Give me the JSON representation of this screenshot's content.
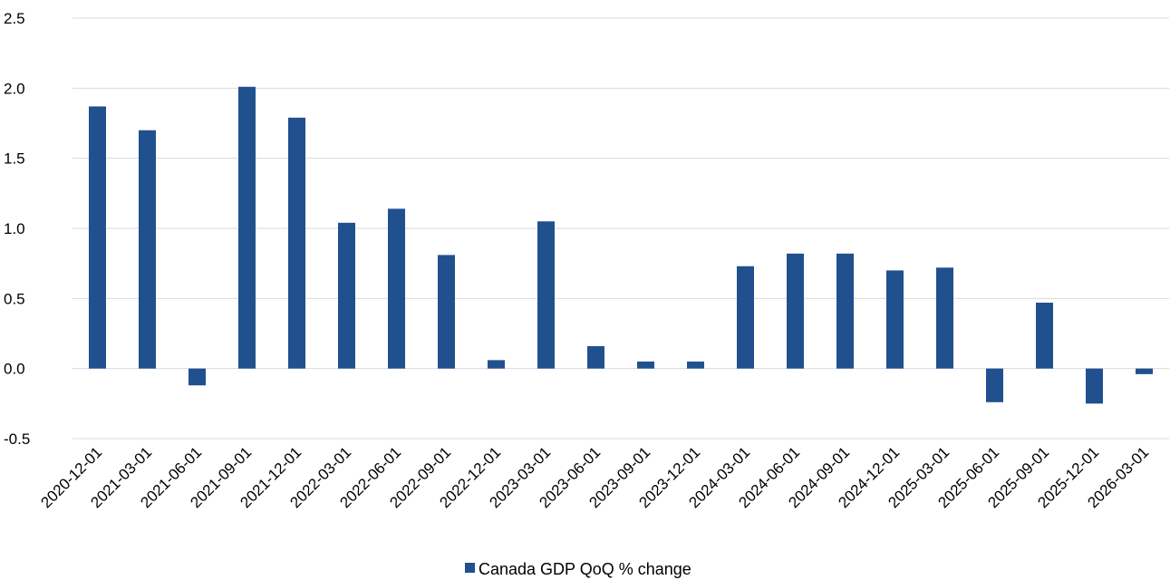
{
  "chart_data": {
    "type": "bar",
    "title": "",
    "xlabel": "",
    "ylabel": "",
    "ylim": [
      -0.5,
      2.5
    ],
    "yticks": [
      "-0.5",
      "0.0",
      "0.5",
      "1.0",
      "1.5",
      "2.0",
      "2.5"
    ],
    "grid": true,
    "legend_position": "bottom",
    "categories": [
      "2020-12-01",
      "2021-03-01",
      "2021-06-01",
      "2021-09-01",
      "2021-12-01",
      "2022-03-01",
      "2022-06-01",
      "2022-09-01",
      "2022-12-01",
      "2023-03-01",
      "2023-06-01",
      "2023-09-01",
      "2023-12-01",
      "2024-03-01",
      "2024-06-01",
      "2024-09-01",
      "2024-12-01",
      "2025-03-01",
      "2025-06-01",
      "2025-09-01",
      "2025-12-01",
      "2026-03-01"
    ],
    "series": [
      {
        "name": "Canada GDP QoQ % change",
        "color": "#21508f",
        "values": [
          1.87,
          1.7,
          -0.12,
          2.01,
          1.79,
          1.04,
          1.14,
          0.81,
          0.06,
          1.05,
          0.16,
          0.05,
          0.05,
          0.73,
          0.82,
          0.82,
          0.7,
          0.72,
          -0.24,
          0.47,
          -0.25,
          -0.04
        ]
      }
    ]
  }
}
